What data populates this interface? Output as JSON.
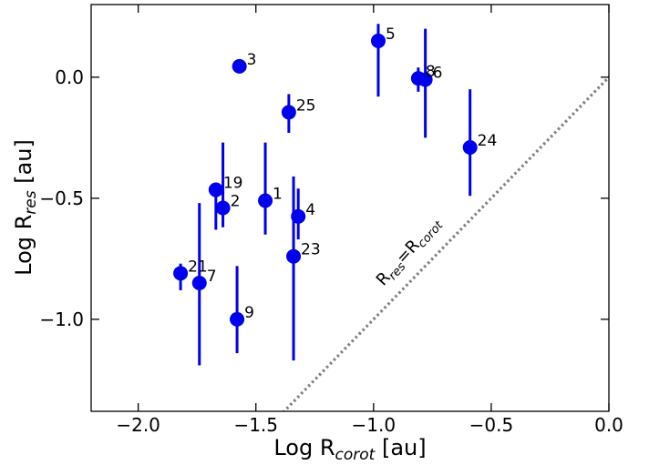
{
  "chart_data": {
    "type": "scatter",
    "xlabel": {
      "base": "Log R",
      "sub": "corot",
      "unit": " [au]"
    },
    "ylabel": {
      "base": "Log R",
      "sub": "res",
      "unit": " [au]"
    },
    "xlim": [
      -2.2,
      0.0
    ],
    "ylim": [
      -1.38,
      0.3
    ],
    "xticks": [
      -2.0,
      -1.5,
      -1.0,
      -0.5,
      0.0
    ],
    "xtick_labels": [
      "−2.0",
      "−1.5",
      "−1.0",
      "−0.5",
      "0.0"
    ],
    "yticks": [
      0.0,
      -0.5,
      -1.0
    ],
    "ytick_labels": [
      "0.0",
      "−0.5",
      "−1.0"
    ],
    "grid": false,
    "legend": false,
    "colors": {
      "points": "#0000ee",
      "diagonal": "#808080"
    },
    "diagonal": {
      "description": "y = x reference line (dotted)",
      "label": {
        "base": "R",
        "sub1": "res",
        "eq": "=R",
        "sub2": "corot"
      }
    },
    "points": [
      {
        "label": "1",
        "x": -1.46,
        "y": -0.51,
        "err_low": -0.65,
        "err_high": -0.27
      },
      {
        "label": "2",
        "x": -1.64,
        "y": -0.54,
        "err_low": -0.62,
        "err_high": -0.27
      },
      {
        "label": "3",
        "x": -1.57,
        "y": 0.045,
        "err_low": null,
        "err_high": null
      },
      {
        "label": "4",
        "x": -1.32,
        "y": -0.575,
        "err_low": -0.67,
        "err_high": -0.46
      },
      {
        "label": "5",
        "x": -0.98,
        "y": 0.15,
        "err_low": -0.08,
        "err_high": 0.22
      },
      {
        "label": "6",
        "x": -0.78,
        "y": -0.01,
        "err_low": -0.25,
        "err_high": 0.2
      },
      {
        "label": "7",
        "x": -1.74,
        "y": -0.85,
        "err_low": -1.19,
        "err_high": -0.52
      },
      {
        "label": "8",
        "x": -0.81,
        "y": -0.005,
        "err_low": -0.06,
        "err_high": 0.04
      },
      {
        "label": "9",
        "x": -1.58,
        "y": -1.0,
        "err_low": -1.14,
        "err_high": -0.78
      },
      {
        "label": "19",
        "x": -1.67,
        "y": -0.465,
        "err_low": -0.63,
        "err_high": -0.45
      },
      {
        "label": "21",
        "x": -1.82,
        "y": -0.81,
        "err_low": -0.88,
        "err_high": -0.77
      },
      {
        "label": "23",
        "x": -1.34,
        "y": -0.74,
        "err_low": -1.17,
        "err_high": -0.41
      },
      {
        "label": "24",
        "x": -0.59,
        "y": -0.29,
        "err_low": -0.49,
        "err_high": -0.05
      },
      {
        "label": "25",
        "x": -1.36,
        "y": -0.145,
        "err_low": -0.23,
        "err_high": -0.07
      }
    ]
  }
}
